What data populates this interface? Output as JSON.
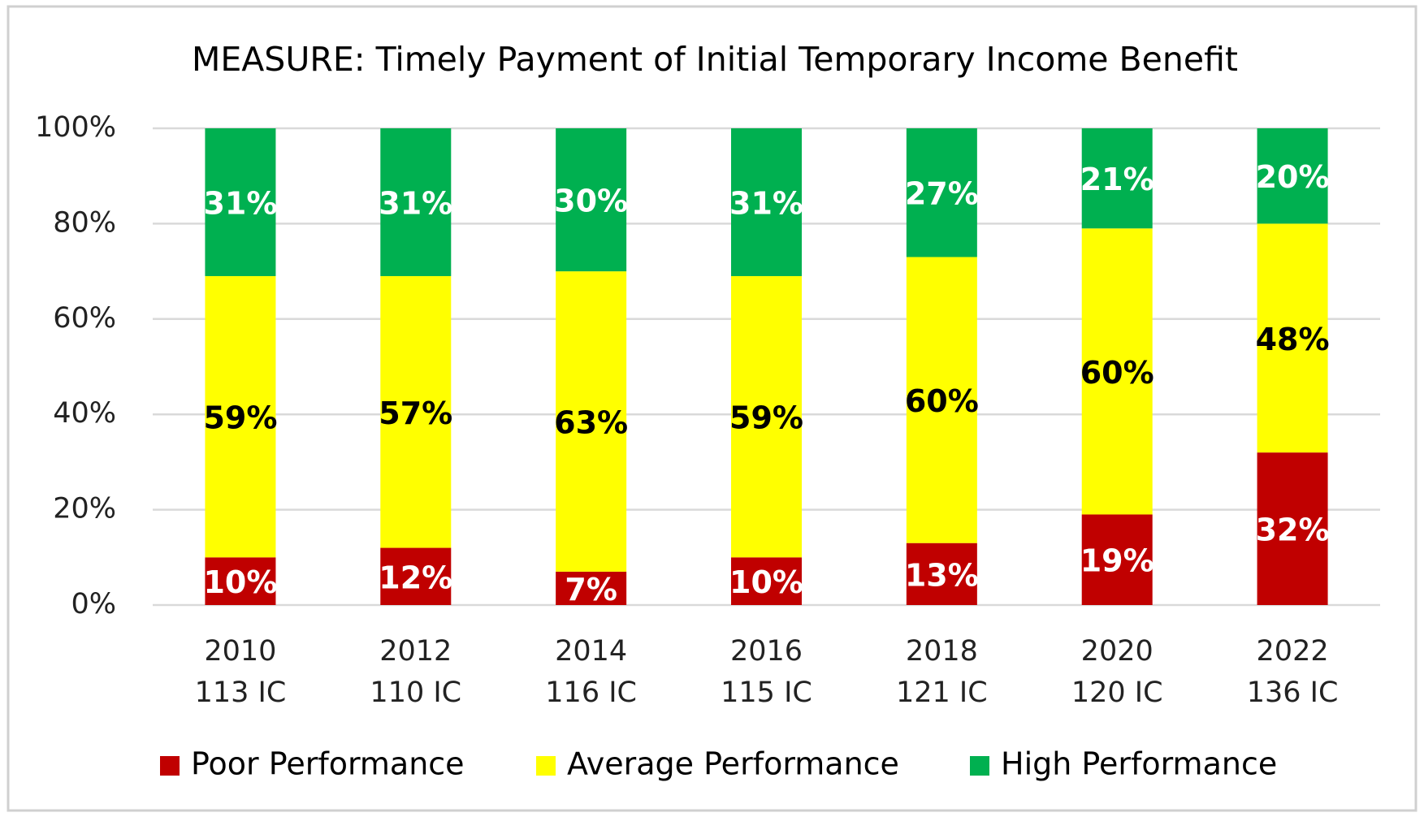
{
  "chart_data": {
    "type": "stacked_bar",
    "title": "MEASURE: Timely Payment of Initial Temporary Income Benefit",
    "categories": [
      [
        "2010",
        "113 IC"
      ],
      [
        "2012",
        "110 IC"
      ],
      [
        "2014",
        "116 IC"
      ],
      [
        "2016",
        "115 IC"
      ],
      [
        "2018",
        "121 IC"
      ],
      [
        "2020",
        "120 IC"
      ],
      [
        "2022",
        "136 IC"
      ]
    ],
    "series": [
      {
        "name": "Poor Performance",
        "color": "#c00000",
        "label_color": "#ffffff",
        "values": [
          10,
          12,
          7,
          10,
          13,
          19,
          32
        ],
        "value_labels": [
          "10%",
          "12%",
          "7%",
          "10%",
          "13%",
          "19%",
          "32%"
        ]
      },
      {
        "name": "Average Performance",
        "color": "#ffff00",
        "label_color": "#000000",
        "values": [
          59,
          57,
          63,
          59,
          60,
          60,
          48
        ],
        "value_labels": [
          "59%",
          "57%",
          "63%",
          "59%",
          "60%",
          "60%",
          "48%"
        ]
      },
      {
        "name": "High Performance",
        "color": "#00b050",
        "label_color": "#ffffff",
        "values": [
          31,
          31,
          30,
          31,
          27,
          21,
          20
        ],
        "value_labels": [
          "31%",
          "31%",
          "30%",
          "31%",
          "27%",
          "21%",
          "20%"
        ]
      }
    ],
    "ylim": [
      0,
      100
    ],
    "yticks": [
      {
        "value": 0,
        "label": "0%"
      },
      {
        "value": 20,
        "label": "20%"
      },
      {
        "value": 40,
        "label": "40%"
      },
      {
        "value": 60,
        "label": "60%"
      },
      {
        "value": 80,
        "label": "80%"
      },
      {
        "value": 100,
        "label": "100%"
      }
    ],
    "grid": true,
    "legend": "bottom"
  }
}
